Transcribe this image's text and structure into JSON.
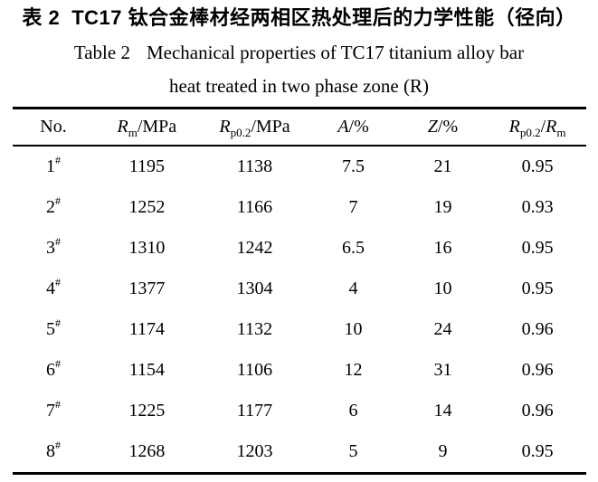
{
  "page": {
    "title_cn": {
      "prefix": "表 2",
      "text": "TC17 钛合金棒材经两相区热处理后的力学性能（径向）"
    },
    "title_en": {
      "prefix": "Table 2",
      "text": "Mechanical properties of TC17 titanium alloy bar"
    },
    "title_en_line2": "heat treated in two phase zone (R)"
  },
  "table": {
    "headers": [
      {
        "text": "No."
      },
      {
        "var": "R",
        "sub": "m",
        "rest": "/MPa"
      },
      {
        "var": "R",
        "sub": "p0.2",
        "rest": "/MPa"
      },
      {
        "var": "A",
        "rest": "/%"
      },
      {
        "var": "Z",
        "rest": "/%"
      },
      {
        "var": "R",
        "sub": "p0.2",
        "rest": "/",
        "var2": "R",
        "sub2": "m"
      }
    ],
    "rows": [
      {
        "no": "1",
        "no_sup": "#",
        "rm": "1195",
        "rp02": "1138",
        "a": "7.5",
        "z": "21",
        "ratio": "0.95"
      },
      {
        "no": "2",
        "no_sup": "#",
        "rm": "1252",
        "rp02": "1166",
        "a": "7",
        "z": "19",
        "ratio": "0.93"
      },
      {
        "no": "3",
        "no_sup": "#",
        "rm": "1310",
        "rp02": "1242",
        "a": "6.5",
        "z": "16",
        "ratio": "0.95"
      },
      {
        "no": "4",
        "no_sup": "#",
        "rm": "1377",
        "rp02": "1304",
        "a": "4",
        "z": "10",
        "ratio": "0.95"
      },
      {
        "no": "5",
        "no_sup": "#",
        "rm": "1174",
        "rp02": "1132",
        "a": "10",
        "z": "24",
        "ratio": "0.96"
      },
      {
        "no": "6",
        "no_sup": "#",
        "rm": "1154",
        "rp02": "1106",
        "a": "12",
        "z": "31",
        "ratio": "0.96"
      },
      {
        "no": "7",
        "no_sup": "#",
        "rm": "1225",
        "rp02": "1177",
        "a": "6",
        "z": "14",
        "ratio": "0.96"
      },
      {
        "no": "8",
        "no_sup": "#",
        "rm": "1268",
        "rp02": "1203",
        "a": "5",
        "z": "9",
        "ratio": "0.95"
      }
    ]
  },
  "colors": {
    "text": "#000000",
    "background": "#ffffff",
    "rule": "#000000"
  }
}
